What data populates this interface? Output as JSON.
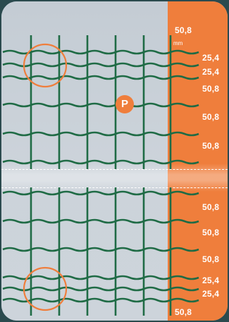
{
  "top_label": "50,8",
  "unit": "mm",
  "spacing_labels": [
    "25,4",
    "25,4",
    "50,8",
    "50,8",
    "50,8",
    "50,8",
    "50,8",
    "50,8",
    "25,4",
    "25,4"
  ],
  "bottom_label": "50,8",
  "marker_letter": "P",
  "colors": {
    "background": "#2b4a4e",
    "panel": "#c9d1d8",
    "accent": "#ef7e3c",
    "wire": "#1f6b45",
    "label_text": "#ffffff"
  }
}
